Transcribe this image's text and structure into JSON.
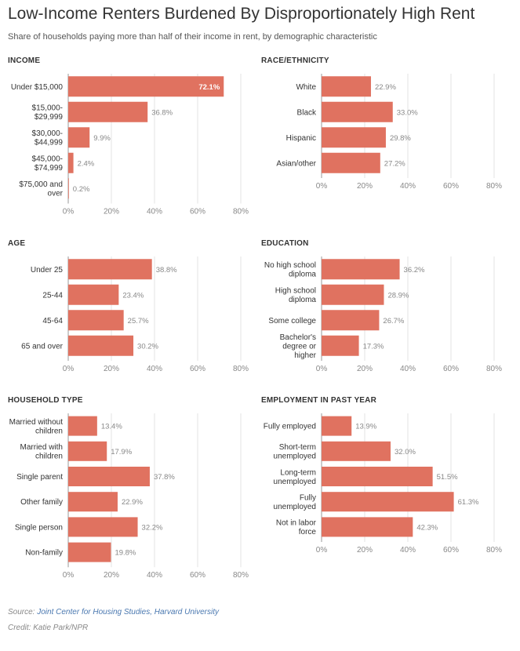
{
  "header": {
    "title": "Low-Income Renters Burdened By Disproportionately High Rent",
    "subtitle": "Share of households paying more than half of their income in rent, by demographic characteristic"
  },
  "footer": {
    "source_label": "Source: ",
    "source_text": "Joint Center for Housing Studies, Harvard University",
    "credit": "Credit: Katie Park/NPR"
  },
  "colors": {
    "bar": "#e07260",
    "grid": "#e3e3e3",
    "axis": "#999999",
    "value_inside": "#ffffff",
    "value_outside": "#888888"
  },
  "chart_data": [
    {
      "type": "bar",
      "orientation": "horizontal",
      "title": "INCOME",
      "categories": [
        [
          "Under $15,000"
        ],
        [
          "$15,000-",
          "$29,999"
        ],
        [
          "$30,000-",
          "$44,999"
        ],
        [
          "$45,000-",
          "$74,999"
        ],
        [
          "$75,000 and",
          "over"
        ]
      ],
      "values": [
        72.1,
        36.8,
        9.9,
        2.4,
        0.2
      ],
      "value_labels": [
        "72.1%",
        "36.8%",
        "9.9%",
        "2.4%",
        "0.2%"
      ],
      "xlim": [
        0,
        80
      ],
      "xticks": [
        "0%",
        "20%",
        "40%",
        "60%",
        "80%"
      ],
      "grid": true
    },
    {
      "type": "bar",
      "orientation": "horizontal",
      "title": "RACE/ETHNICITY",
      "categories": [
        [
          "White"
        ],
        [
          "Black"
        ],
        [
          "Hispanic"
        ],
        [
          "Asian/other"
        ]
      ],
      "values": [
        22.9,
        33.0,
        29.8,
        27.2
      ],
      "value_labels": [
        "22.9%",
        "33.0%",
        "29.8%",
        "27.2%"
      ],
      "xlim": [
        0,
        80
      ],
      "xticks": [
        "0%",
        "20%",
        "40%",
        "60%",
        "80%"
      ],
      "grid": true
    },
    {
      "type": "bar",
      "orientation": "horizontal",
      "title": "AGE",
      "categories": [
        [
          "Under 25"
        ],
        [
          "25-44"
        ],
        [
          "45-64"
        ],
        [
          "65 and over"
        ]
      ],
      "values": [
        38.8,
        23.4,
        25.7,
        30.2
      ],
      "value_labels": [
        "38.8%",
        "23.4%",
        "25.7%",
        "30.2%"
      ],
      "xlim": [
        0,
        80
      ],
      "xticks": [
        "0%",
        "20%",
        "40%",
        "60%",
        "80%"
      ],
      "grid": true
    },
    {
      "type": "bar",
      "orientation": "horizontal",
      "title": "EDUCATION",
      "categories": [
        [
          "No high school",
          "diploma"
        ],
        [
          "High school",
          "diploma"
        ],
        [
          "Some college"
        ],
        [
          "Bachelor's",
          "degree or",
          "higher"
        ]
      ],
      "values": [
        36.2,
        28.9,
        26.7,
        17.3
      ],
      "value_labels": [
        "36.2%",
        "28.9%",
        "26.7%",
        "17.3%"
      ],
      "xlim": [
        0,
        80
      ],
      "xticks": [
        "0%",
        "20%",
        "40%",
        "60%",
        "80%"
      ],
      "grid": true
    },
    {
      "type": "bar",
      "orientation": "horizontal",
      "title": "HOUSEHOLD TYPE",
      "categories": [
        [
          "Married without",
          "children"
        ],
        [
          "Married with",
          "children"
        ],
        [
          "Single parent"
        ],
        [
          "Other family"
        ],
        [
          "Single person"
        ],
        [
          "Non-family"
        ]
      ],
      "values": [
        13.4,
        17.9,
        37.8,
        22.9,
        32.2,
        19.8
      ],
      "value_labels": [
        "13.4%",
        "17.9%",
        "37.8%",
        "22.9%",
        "32.2%",
        "19.8%"
      ],
      "xlim": [
        0,
        80
      ],
      "xticks": [
        "0%",
        "20%",
        "40%",
        "60%",
        "80%"
      ],
      "grid": true
    },
    {
      "type": "bar",
      "orientation": "horizontal",
      "title": "EMPLOYMENT IN PAST YEAR",
      "categories": [
        [
          "Fully employed"
        ],
        [
          "Short-term",
          "unemployed"
        ],
        [
          "Long-term",
          "unemployed"
        ],
        [
          "Fully",
          "unemployed"
        ],
        [
          "Not in labor",
          "force"
        ]
      ],
      "values": [
        13.9,
        32.0,
        51.5,
        61.3,
        42.3
      ],
      "value_labels": [
        "13.9%",
        "32.0%",
        "51.5%",
        "61.3%",
        "42.3%"
      ],
      "xlim": [
        0,
        80
      ],
      "xticks": [
        "0%",
        "20%",
        "40%",
        "60%",
        "80%"
      ],
      "grid": true
    }
  ]
}
